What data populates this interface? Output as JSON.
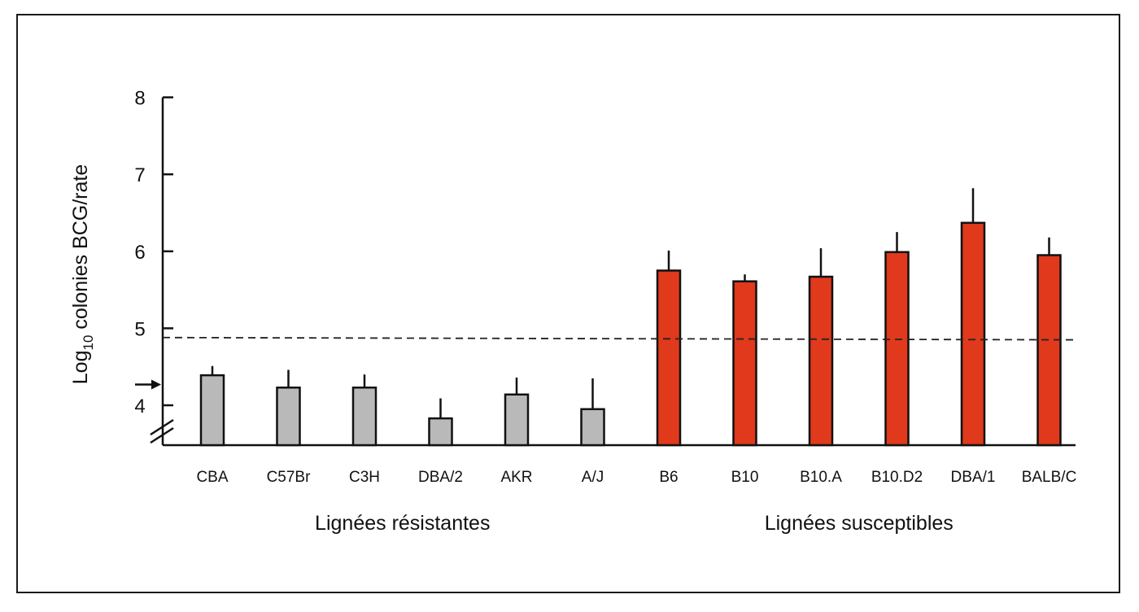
{
  "chart_data": {
    "type": "bar",
    "ylabel": {
      "prefix": "Log",
      "subscript": "10",
      "rest": " colonies BCG/rate"
    },
    "ylim": [
      3.5,
      8
    ],
    "yticks": [
      4,
      5,
      6,
      7,
      8
    ],
    "axis_break": true,
    "grid": false,
    "legend": "none",
    "categories": [
      "CBA",
      "C57Br",
      "C3H",
      "DBA/2",
      "AKR",
      "A/J",
      "B6",
      "B10",
      "B10.A",
      "B10.D2",
      "DBA/1",
      "BALB/C"
    ],
    "series": [
      {
        "values": [
          4.39,
          4.23,
          4.23,
          3.83,
          4.14,
          3.95,
          5.75,
          5.61,
          5.67,
          5.99,
          6.37,
          5.95
        ],
        "error": [
          0.12,
          0.23,
          0.17,
          0.26,
          0.22,
          0.4,
          0.26,
          0.09,
          0.37,
          0.26,
          0.45,
          0.23
        ]
      }
    ],
    "group_of": [
      0,
      0,
      0,
      0,
      0,
      0,
      1,
      1,
      1,
      1,
      1,
      1
    ],
    "groups": [
      {
        "label": "Lignées résistantes",
        "color": "#b9b9b9"
      },
      {
        "label": "Lignées susceptibles",
        "color": "#e0391c"
      }
    ],
    "threshold_line": {
      "style": "dashed",
      "y_start": 4.88,
      "y_end": 4.85
    },
    "arrow_marker": {
      "y": 4.27
    }
  }
}
